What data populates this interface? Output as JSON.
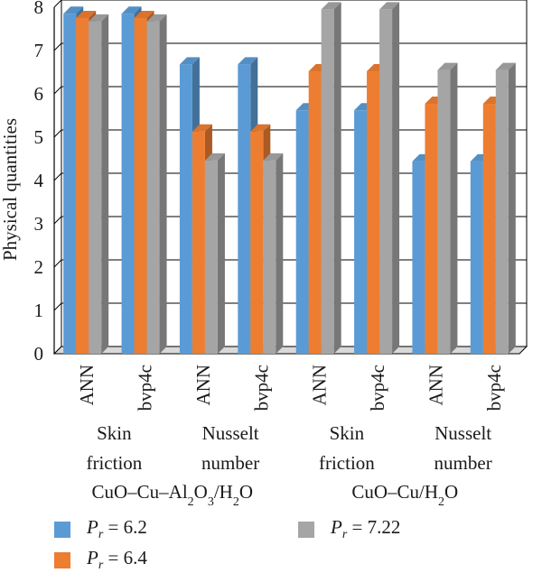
{
  "chart_data": {
    "type": "bar",
    "ylabel": "Physical quantities",
    "ylim": [
      0,
      8
    ],
    "yticks": [
      "0",
      "1",
      "2",
      "3",
      "4",
      "5",
      "6",
      "7",
      "8"
    ],
    "grid": true,
    "categories": [
      "ANN",
      "bvp4c",
      "ANN",
      "bvp4c",
      "ANN",
      "bvp4c",
      "ANN",
      "bvp4c"
    ],
    "groups": [
      {
        "label_lines": [
          "Skin",
          "friction"
        ]
      },
      {
        "label_lines": [
          "Nusselt",
          "number"
        ]
      },
      {
        "label_lines": [
          "Skin",
          "friction"
        ]
      },
      {
        "label_lines": [
          "Nusselt",
          "number"
        ]
      }
    ],
    "supergroups": [
      {
        "label": "CuO–Cu–Al2O3/H2O"
      },
      {
        "label": "CuO–Cu/H2O"
      }
    ],
    "series": [
      {
        "name": "Pr = 6.2",
        "color": "#5b9bd5",
        "values": [
          7.85,
          7.85,
          6.68,
          6.68,
          5.62,
          5.62,
          4.44,
          4.44
        ]
      },
      {
        "name": "Pr = 6.4",
        "color": "#ed7d31",
        "values": [
          7.75,
          7.75,
          5.13,
          5.13,
          6.52,
          6.52,
          5.77,
          5.77
        ]
      },
      {
        "name": "Pr = 7.22",
        "color": "#a5a5a5",
        "values": [
          7.67,
          7.67,
          4.46,
          4.46,
          7.95,
          7.95,
          6.55,
          6.55
        ]
      }
    ],
    "legend_position": "bottom"
  },
  "legend": {
    "items": [
      {
        "var": "P",
        "sub": "r",
        "value": " = 6.2"
      },
      {
        "var": "P",
        "sub": "r",
        "value": " = 6.4"
      },
      {
        "var": "P",
        "sub": "r",
        "value": " = 7.22"
      }
    ]
  }
}
